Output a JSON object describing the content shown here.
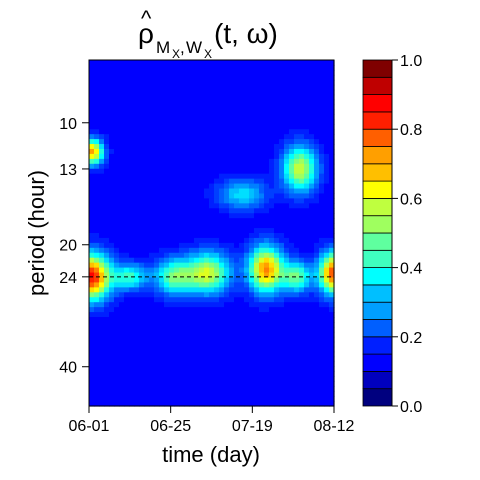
{
  "chart_data": {
    "type": "heatmap",
    "title": "ρ̂_{M_X,W_X}(t, ω)",
    "title_parts": {
      "main": "ρ",
      "sub1": "M",
      "subsub1": "X",
      "comma": ",",
      "sub2": "W",
      "subsub2": "X",
      "args": "(t, ω)"
    },
    "xlabel": "time (day)",
    "ylabel": "period (hour)",
    "x_ticks": [
      "06-01",
      "06-25",
      "07-19",
      "08-12"
    ],
    "x_range_days": [
      0,
      72
    ],
    "x_tick_days": [
      0,
      24,
      48,
      72
    ],
    "y_ticks": [
      "10",
      "13",
      "20",
      "24",
      "40"
    ],
    "y_tick_values": [
      10,
      13,
      20,
      24,
      40
    ],
    "y_scale": "log",
    "y_range": [
      7,
      50
    ],
    "y_direction": "increasing downward",
    "reference_line_period": 24,
    "reference_line_style": "dashed",
    "colorbar": {
      "range": [
        0,
        1
      ],
      "ticks": [
        "0.0",
        "0.2",
        "0.4",
        "0.6",
        "0.8",
        "1.0"
      ],
      "tick_values": [
        0,
        0.2,
        0.4,
        0.6,
        0.8,
        1.0
      ],
      "levels": 20,
      "colors": [
        "#00007F",
        "#00009F",
        "#0000BF",
        "#0000DF",
        "#0000FF",
        "#001FFF",
        "#003FFF",
        "#005FFF",
        "#007FFF",
        "#009FFF",
        "#00BFFF",
        "#00DFFF",
        "#00FFFF",
        "#1FFFDF",
        "#3FFFBF",
        "#5FFF9F",
        "#7FFF7F",
        "#9FFF5F",
        "#BFFF3F",
        "#DFFF1F",
        "#FFFF00",
        "#FFDF00",
        "#FFBF00",
        "#FF9F00",
        "#FF7F00",
        "#FF5F00",
        "#FF3F00",
        "#FF1F00",
        "#FF0000",
        "#DF0000",
        "#BF0000",
        "#9F0000",
        "#7F0000"
      ]
    },
    "blobs": [
      {
        "day": 1.0,
        "period": 11.8,
        "sd_day": 2.2,
        "sd_logp": 0.05,
        "amp": 0.58
      },
      {
        "day": 0.5,
        "period": 24.0,
        "sd_day": 4.0,
        "sd_logp": 0.09,
        "amp": 0.73
      },
      {
        "day": 25.0,
        "period": 24.0,
        "sd_day": 4.0,
        "sd_logp": 0.07,
        "amp": 0.35
      },
      {
        "day": 35.0,
        "period": 23.5,
        "sd_day": 4.5,
        "sd_logp": 0.08,
        "amp": 0.45
      },
      {
        "day": 52.0,
        "period": 23.0,
        "sd_day": 3.5,
        "sd_logp": 0.09,
        "amp": 0.6
      },
      {
        "day": 62.0,
        "period": 13.0,
        "sd_day": 3.5,
        "sd_logp": 0.09,
        "amp": 0.45
      },
      {
        "day": 61.0,
        "period": 24.0,
        "sd_day": 3.0,
        "sd_logp": 0.06,
        "amp": 0.35
      },
      {
        "day": 72.0,
        "period": 23.5,
        "sd_day": 3.0,
        "sd_logp": 0.08,
        "amp": 0.68
      },
      {
        "day": 12.0,
        "period": 24.0,
        "sd_day": 3.5,
        "sd_logp": 0.05,
        "amp": 0.3
      },
      {
        "day": 45.0,
        "period": 15.0,
        "sd_day": 5.0,
        "sd_logp": 0.06,
        "amp": 0.22
      }
    ],
    "background_level": 0.13,
    "grid": false
  }
}
